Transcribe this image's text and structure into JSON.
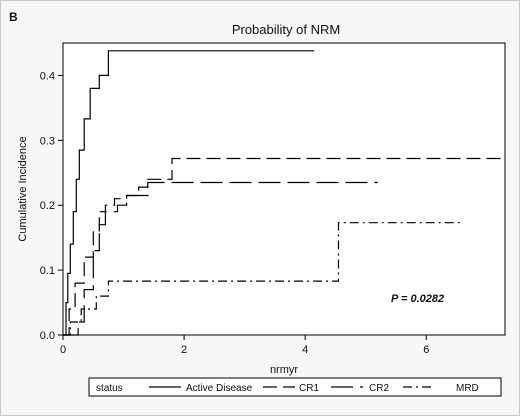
{
  "panel_label": "B",
  "chart_data": {
    "type": "line",
    "title": "Probability of NRM",
    "xlabel": "nrmyr",
    "ylabel": "Cumulative Incidence",
    "xlim": [
      0,
      7.3
    ],
    "ylim": [
      0,
      0.45
    ],
    "x_ticks": [
      "0",
      "2",
      "4",
      "6"
    ],
    "x_tick_values": [
      0,
      2,
      4,
      6
    ],
    "y_ticks": [
      "0.0",
      "0.1",
      "0.2",
      "0.3",
      "0.4"
    ],
    "y_tick_values": [
      0,
      0.1,
      0.2,
      0.3,
      0.4
    ],
    "annotation": "P = 0.0282",
    "legend_title": "status",
    "legend_position": "bottom",
    "series": [
      {
        "name": "Active Disease",
        "dash": "none",
        "x": [
          0,
          0.05,
          0.08,
          0.12,
          0.17,
          0.22,
          0.27,
          0.35,
          0.45,
          0.6,
          0.75,
          4.15
        ],
        "y": [
          0,
          0.05,
          0.095,
          0.14,
          0.19,
          0.24,
          0.285,
          0.333,
          0.38,
          0.4,
          0.438,
          0.438
        ]
      },
      {
        "name": "CR1",
        "dash": "14,6",
        "x": [
          0,
          0.1,
          0.2,
          0.35,
          0.5,
          0.6,
          0.7,
          0.85,
          1.05,
          1.25,
          1.4,
          1.8,
          7.3
        ],
        "y": [
          0,
          0.04,
          0.08,
          0.12,
          0.16,
          0.19,
          0.2,
          0.21,
          0.215,
          0.228,
          0.24,
          0.272,
          0.272
        ]
      },
      {
        "name": "CR2",
        "dash": "22,7",
        "x": [
          0,
          0.25,
          0.35,
          0.5,
          0.6,
          0.7,
          0.9,
          1.05,
          1.4,
          5.2
        ],
        "y": [
          0,
          0.02,
          0.07,
          0.13,
          0.17,
          0.19,
          0.2,
          0.215,
          0.235,
          0.235
        ]
      },
      {
        "name": "MRD",
        "dash": "9,4,2,4",
        "x": [
          0,
          0.12,
          0.3,
          0.55,
          0.75,
          4.55,
          6.6
        ],
        "y": [
          0,
          0.02,
          0.04,
          0.06,
          0.083,
          0.173,
          0.173
        ]
      }
    ]
  }
}
